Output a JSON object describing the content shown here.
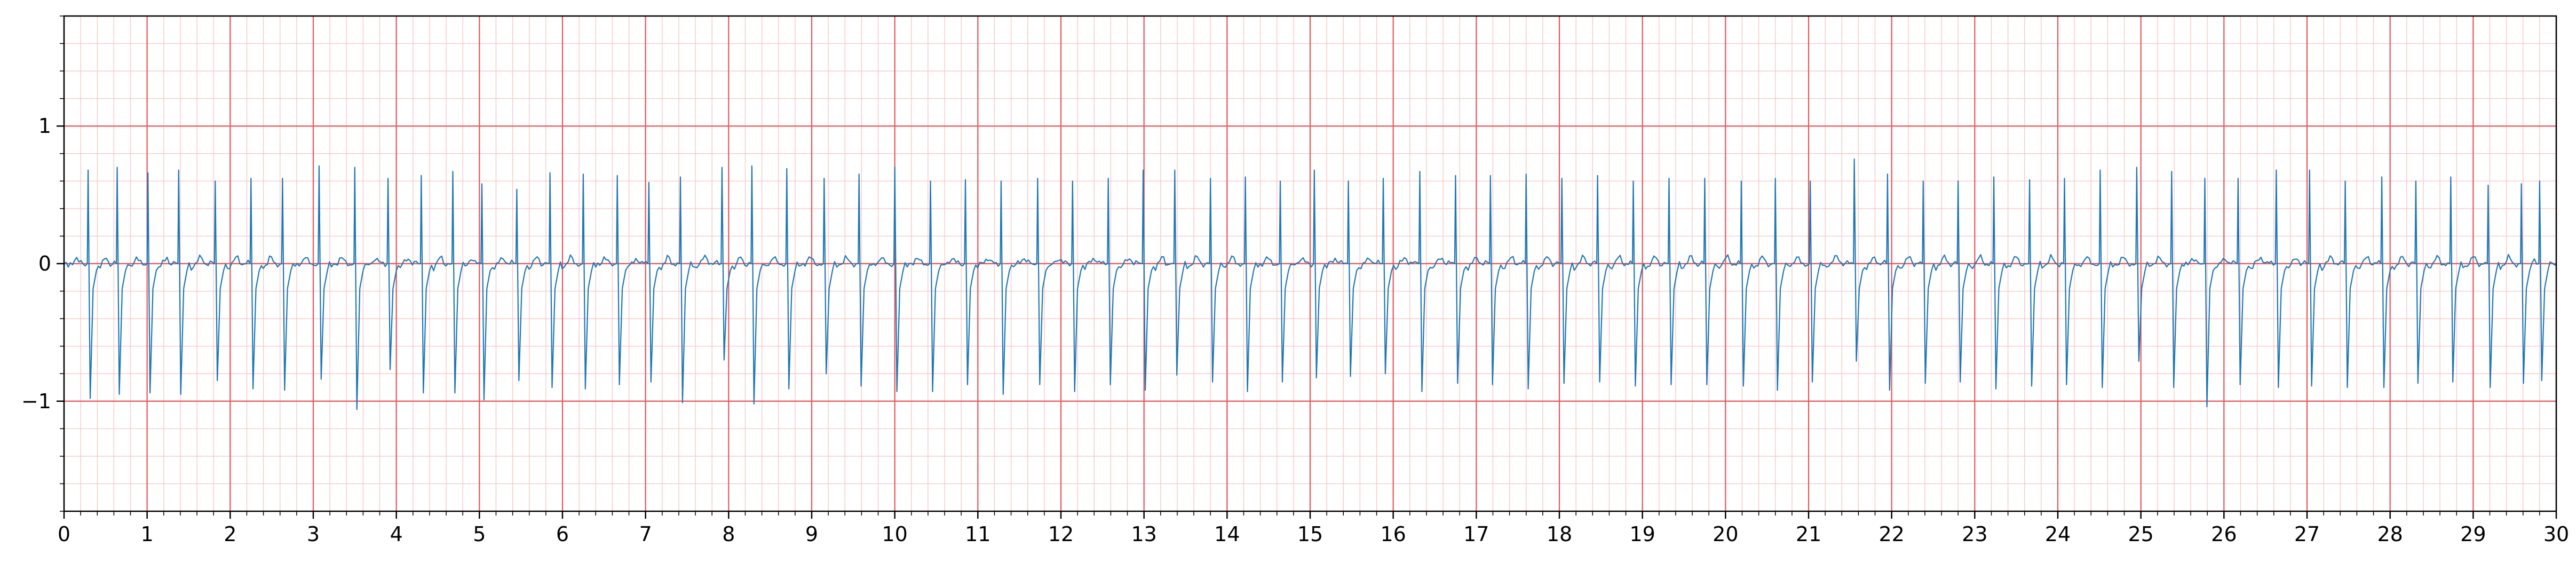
{
  "chart_data": {
    "type": "line",
    "title": "",
    "xlabel": "",
    "ylabel": "",
    "xlim": [
      0,
      30
    ],
    "ylim": [
      -1.8,
      1.8
    ],
    "grid": true,
    "x_ticks": [
      "0",
      "1",
      "2",
      "3",
      "4",
      "5",
      "6",
      "7",
      "8",
      "9",
      "10",
      "11",
      "12",
      "13",
      "14",
      "15",
      "16",
      "17",
      "18",
      "19",
      "20",
      "21",
      "22",
      "23",
      "24",
      "25",
      "26",
      "27",
      "28",
      "29",
      "30"
    ],
    "y_ticks": [
      "−1",
      "0",
      "1"
    ],
    "colors": {
      "trace": "#1f77b4",
      "major_grid": "#e8555b",
      "minor_grid": "#f8c0c0",
      "axes": "#000000"
    },
    "series": [
      {
        "beats": {
          "up_times": [
            0.29,
            0.64,
            1.01,
            1.38,
            1.82,
            2.25,
            2.63,
            3.07,
            3.5,
            3.9,
            4.3,
            4.68,
            5.03,
            5.45,
            5.85,
            6.25,
            6.66,
            7.04,
            7.42,
            7.92,
            8.28,
            8.7,
            9.15,
            9.57,
            10.0,
            10.43,
            10.85,
            11.28,
            11.72,
            12.14,
            12.57,
            12.99,
            13.37,
            13.8,
            14.22,
            14.64,
            15.05,
            15.46,
            15.88,
            16.32,
            16.75,
            17.17,
            17.6,
            18.03,
            18.46,
            18.89,
            19.32,
            19.75,
            20.19,
            20.6,
            21.02,
            21.55,
            21.95,
            22.38,
            22.8,
            23.23,
            23.66,
            24.08,
            24.51,
            24.95,
            25.37,
            25.77,
            26.17,
            26.63,
            27.03,
            27.46,
            27.9,
            28.31,
            28.73,
            29.18,
            29.58,
            29.8
          ],
          "up_values": [
            0.68,
            0.7,
            0.66,
            0.68,
            0.6,
            0.62,
            0.62,
            0.71,
            0.7,
            0.62,
            0.64,
            0.67,
            0.58,
            0.54,
            0.66,
            0.65,
            0.64,
            0.59,
            0.63,
            0.7,
            0.71,
            0.69,
            0.62,
            0.65,
            0.7,
            0.6,
            0.61,
            0.6,
            0.62,
            0.6,
            0.62,
            0.68,
            0.68,
            0.62,
            0.63,
            0.6,
            0.68,
            0.6,
            0.62,
            0.67,
            0.64,
            0.64,
            0.65,
            0.62,
            0.64,
            0.6,
            0.62,
            0.62,
            0.6,
            0.62,
            0.6,
            0.76,
            0.65,
            0.6,
            0.6,
            0.63,
            0.61,
            0.62,
            0.68,
            0.7,
            0.67,
            0.62,
            0.62,
            0.68,
            0.68,
            0.6,
            0.63,
            0.6,
            0.63,
            0.57,
            0.58,
            0.6
          ],
          "down_values": [
            -0.98,
            -0.95,
            -0.94,
            -0.95,
            -0.85,
            -0.91,
            -0.92,
            -0.84,
            -1.06,
            -0.77,
            -0.94,
            -0.94,
            -0.99,
            -0.85,
            -0.9,
            -0.91,
            -0.88,
            -0.86,
            -1.01,
            -0.7,
            -1.02,
            -0.91,
            -0.8,
            -0.89,
            -0.93,
            -0.93,
            -0.88,
            -0.95,
            -0.88,
            -0.93,
            -0.88,
            -0.92,
            -0.81,
            -0.86,
            -0.93,
            -0.86,
            -0.83,
            -0.82,
            -0.8,
            -0.93,
            -0.87,
            -0.88,
            -0.91,
            -0.87,
            -0.86,
            -0.89,
            -0.88,
            -0.88,
            -0.89,
            -0.92,
            -0.86,
            -0.71,
            -0.92,
            -0.87,
            -0.86,
            -0.91,
            -0.89,
            -0.88,
            -0.9,
            -0.71,
            -0.9,
            -1.04,
            -0.88,
            -0.9,
            -0.89,
            -0.9,
            -0.9,
            -0.87,
            -0.86,
            -0.9,
            -0.87,
            -0.85
          ]
        }
      }
    ]
  }
}
